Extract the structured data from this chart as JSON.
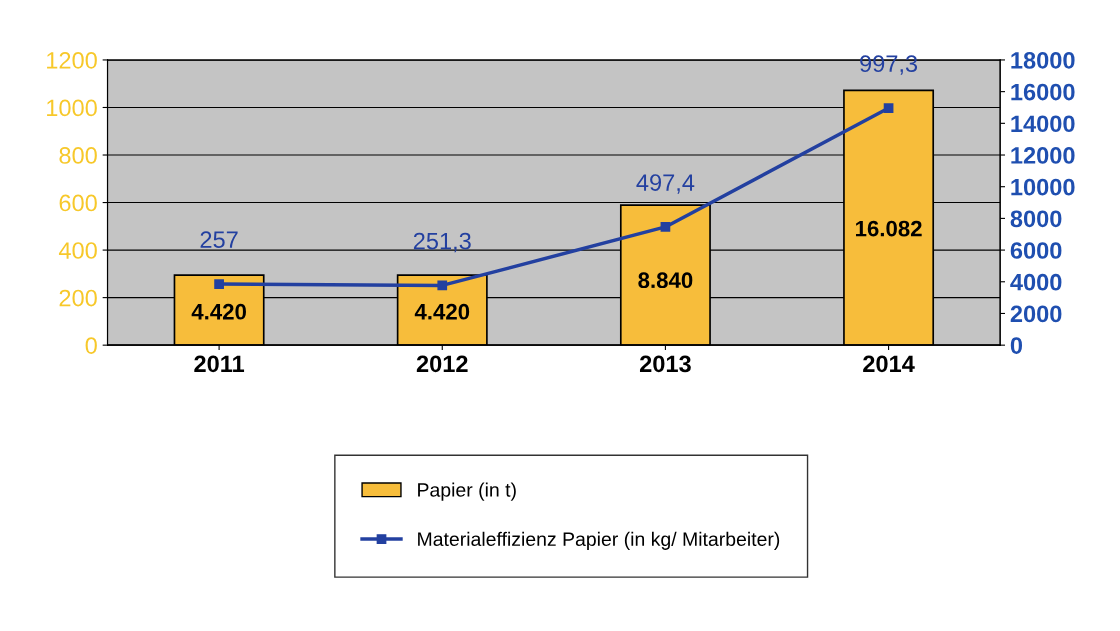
{
  "chart_data": {
    "type": "bar",
    "categories": [
      "2011",
      "2012",
      "2013",
      "2014"
    ],
    "series": [
      {
        "name": "Papier (in t)",
        "axis": "y2",
        "color": "#f7bd3b",
        "values": [
          4420,
          4420,
          8840,
          16082
        ],
        "value_labels": [
          "4.420",
          "4.420",
          "8.840",
          "16.082"
        ]
      },
      {
        "name": "Materialeffizienz Papier (in kg/ Mitarbeiter)",
        "type": "line",
        "axis": "y",
        "color": "#2340a0",
        "values": [
          257,
          251.3,
          497.4,
          997.3
        ],
        "value_labels": [
          "257",
          "251,3",
          "497,4",
          "997,3"
        ]
      }
    ],
    "ylim": [
      0,
      1200
    ],
    "yticks": [
      0,
      200,
      400,
      600,
      800,
      1000,
      1200
    ],
    "y2lim": [
      0,
      18000
    ],
    "y2ticks": [
      0,
      2000,
      4000,
      6000,
      8000,
      10000,
      12000,
      14000,
      16000,
      18000
    ],
    "grid": "y",
    "legend": "bottom",
    "marker": "square",
    "line_style": "solid"
  }
}
